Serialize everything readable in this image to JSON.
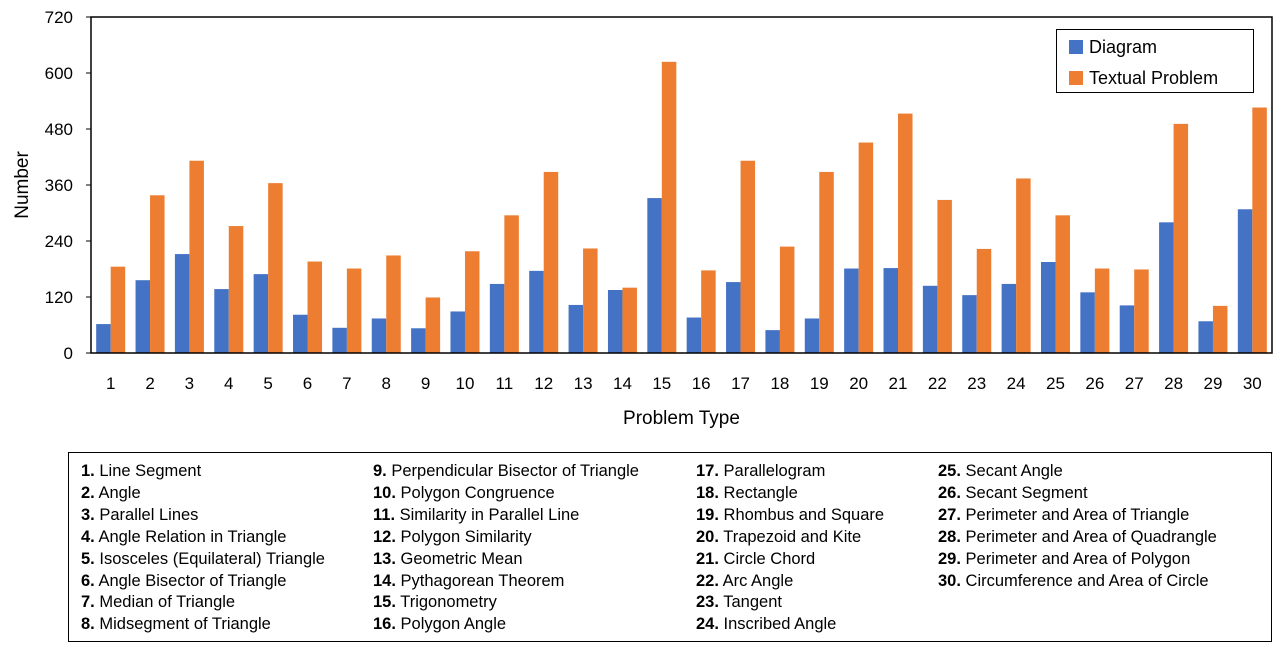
{
  "chart_data": {
    "type": "bar",
    "title": "",
    "xlabel": "Problem Type",
    "ylabel": "Number",
    "ylim": [
      0,
      720
    ],
    "yticks": [
      "0",
      "120",
      "240",
      "360",
      "480",
      "600",
      "720"
    ],
    "categories": [
      "1",
      "2",
      "3",
      "4",
      "5",
      "6",
      "7",
      "8",
      "9",
      "10",
      "11",
      "12",
      "13",
      "14",
      "15",
      "16",
      "17",
      "18",
      "19",
      "20",
      "21",
      "22",
      "23",
      "24",
      "25",
      "26",
      "27",
      "28",
      "29",
      "30"
    ],
    "series": [
      {
        "name": "Diagram",
        "color": "#4472C4",
        "values": [
          62,
          156,
          212,
          137,
          169,
          82,
          54,
          74,
          53,
          89,
          148,
          176,
          103,
          135,
          332,
          76,
          152,
          49,
          74,
          181,
          182,
          144,
          124,
          148,
          195,
          130,
          102,
          280,
          68,
          308
        ]
      },
      {
        "name": "Textual Problem",
        "color": "#ED7D31",
        "values": [
          185,
          338,
          412,
          272,
          364,
          196,
          181,
          209,
          119,
          218,
          295,
          388,
          224,
          140,
          624,
          177,
          412,
          228,
          388,
          451,
          513,
          328,
          223,
          374,
          295,
          181,
          179,
          491,
          101,
          526
        ]
      }
    ],
    "legend_position": "top-right",
    "grid": false
  },
  "key": {
    "columns": [
      [
        {
          "num": "1.",
          "label": "Line Segment"
        },
        {
          "num": "2.",
          "label": "Angle"
        },
        {
          "num": "3.",
          "label": "Parallel Lines"
        },
        {
          "num": "4.",
          "label": "Angle Relation in Triangle"
        },
        {
          "num": "5.",
          "label": "Isosceles (Equilateral) Triangle"
        },
        {
          "num": "6.",
          "label": "Angle Bisector of Triangle"
        },
        {
          "num": "7.",
          "label": "Median of Triangle"
        },
        {
          "num": "8.",
          "label": "Midsegment of Triangle"
        }
      ],
      [
        {
          "num": "9.",
          "label": "Perpendicular Bisector of Triangle"
        },
        {
          "num": "10.",
          "label": "Polygon Congruence"
        },
        {
          "num": "11.",
          "label": "Similarity in Parallel Line"
        },
        {
          "num": "12.",
          "label": "Polygon Similarity"
        },
        {
          "num": "13.",
          "label": "Geometric Mean"
        },
        {
          "num": "14.",
          "label": "Pythagorean Theorem"
        },
        {
          "num": "15.",
          "label": "Trigonometry"
        },
        {
          "num": "16.",
          "label": "Polygon Angle"
        }
      ],
      [
        {
          "num": "17.",
          "label": "Parallelogram"
        },
        {
          "num": "18.",
          "label": "Rectangle"
        },
        {
          "num": "19.",
          "label": "Rhombus and Square"
        },
        {
          "num": "20.",
          "label": "Trapezoid and Kite"
        },
        {
          "num": "21.",
          "label": "Circle Chord"
        },
        {
          "num": "22.",
          "label": "Arc Angle"
        },
        {
          "num": "23.",
          "label": "Tangent"
        },
        {
          "num": "24.",
          "label": "Inscribed Angle"
        }
      ],
      [
        {
          "num": "25.",
          "label": "Secant Angle"
        },
        {
          "num": "26.",
          "label": "Secant Segment"
        },
        {
          "num": "27.",
          "label": "Perimeter and Area of Triangle"
        },
        {
          "num": "28.",
          "label": "Perimeter and Area of Quadrangle"
        },
        {
          "num": "29.",
          "label": "Perimeter and Area of Polygon"
        },
        {
          "num": "30.",
          "label": "Circumference and Area of Circle"
        }
      ]
    ]
  }
}
